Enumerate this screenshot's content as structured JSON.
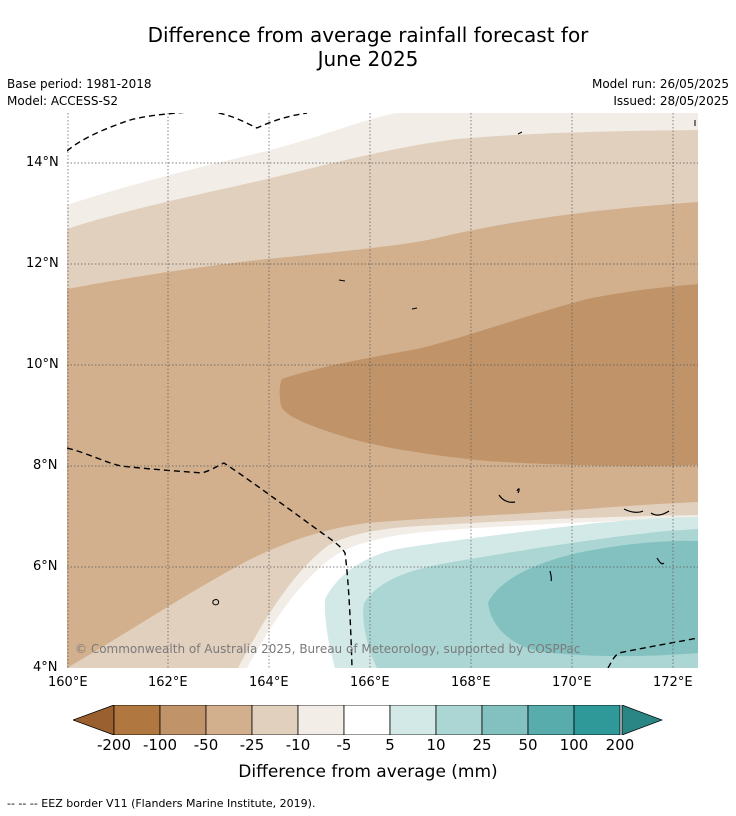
{
  "title_line1": "Difference from average rainfall forecast for",
  "title_line2": "June 2025",
  "base_period": "Base period: 1981-2018",
  "model": "Model: ACCESS-S2",
  "model_run": "Model run: 26/05/2025",
  "issued": "Issued: 28/05/2025",
  "copyright": "© Commonwealth of Australia 2025, Bureau of Meteorology, supported by COSPPac",
  "lat_ticks": [
    "14°N",
    "12°N",
    "10°N",
    "8°N",
    "6°N",
    "4°N"
  ],
  "lon_ticks": [
    "160°E",
    "162°E",
    "164°E",
    "166°E",
    "168°E",
    "170°E",
    "172°E"
  ],
  "colorbar": {
    "labels": [
      "-200",
      "-100",
      "-50",
      "-25",
      "-10",
      "-5",
      "5",
      "10",
      "25",
      "50",
      "100",
      "200"
    ],
    "colors": [
      "#9a6030",
      "#b07840",
      "#c09468",
      "#d2b08e",
      "#e2d0be",
      "#f2ede6",
      "#ffffff",
      "#d3e9e7",
      "#abd6d4",
      "#83c1c0",
      "#58acac",
      "#2f9898",
      "#2a8585"
    ],
    "title": "Difference from average (mm)"
  },
  "footer": "-- -- -- EEZ border V11 (Flanders Marine Institute, 2019)."
}
